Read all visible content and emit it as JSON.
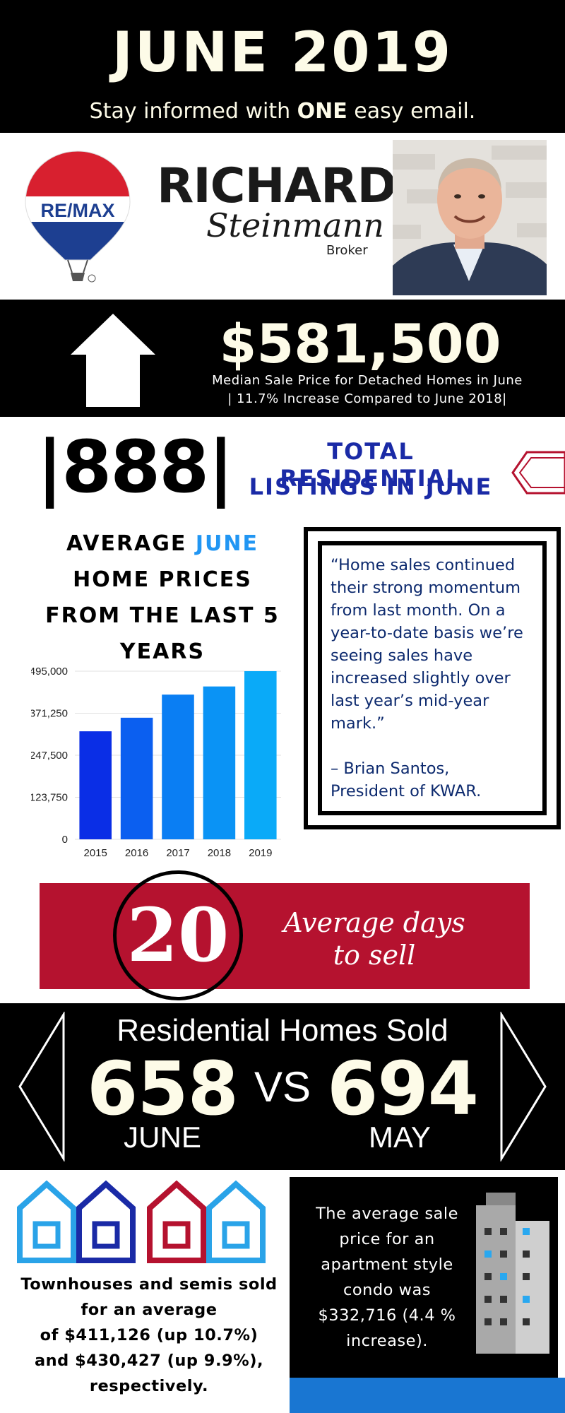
{
  "header": {
    "title": "JUNE 2019",
    "subtitle_pre": "Stay informed with ",
    "subtitle_bold": "ONE",
    "subtitle_post": " easy email."
  },
  "agent": {
    "logo_text": "RE/MAX",
    "first_name": "RICHARD",
    "last_name": "Steinmann",
    "role": "Broker",
    "colors": {
      "red": "#d8202f",
      "blue": "#1d3f91"
    }
  },
  "median": {
    "icon": "house-icon",
    "price": "$581,500",
    "line1": "Median Sale Price for Detached Homes in June",
    "line2": "| 11.7% Increase Compared to June 2018|"
  },
  "listings": {
    "number": "|888|",
    "label_line1": "TOTAL RESIDENTIAL",
    "label_line2": "LISTINGS IN JUNE"
  },
  "avg_prices": {
    "title_l1_pre": "AVERAGE ",
    "title_l1_hl": "JUNE",
    "title_l2": "HOME PRICES",
    "title_l3": "FROM THE LAST 5",
    "title_l4": "YEARS"
  },
  "chart_data": {
    "type": "bar",
    "categories": [
      "2015",
      "2016",
      "2017",
      "2018",
      "2019"
    ],
    "values": [
      318000,
      358000,
      426000,
      450000,
      495000
    ],
    "ylim": [
      0,
      495000
    ],
    "yticks": [
      "495,000",
      "371,250",
      "247,500",
      "123,750",
      "0"
    ],
    "ytick_values": [
      495000,
      371250,
      247500,
      123750,
      0
    ],
    "colors": [
      "#0a2ee6",
      "#0b5ff0",
      "#0a7ef3",
      "#0a93f5",
      "#0aaaf8"
    ],
    "grid": true
  },
  "quote": {
    "text": "“Home sales continued their strong momentum from last month. On a year-to-date basis we’re seeing sales have increased slightly over last year’s mid-year mark.”",
    "attr_l1": "– Brian Santos,",
    "attr_l2": "President of KWAR."
  },
  "days": {
    "number": "20",
    "label_l1": "Average days",
    "label_l2": "to sell"
  },
  "sold": {
    "title": "Residential Homes Sold",
    "june_value": "658",
    "june_label": "JUNE",
    "vs": "VS",
    "may_value": "694",
    "may_label": "MAY"
  },
  "townhouses": {
    "l1": "Townhouses and semis sold",
    "l2": "for an average",
    "l3": "of $411,126 (up 10.7%)",
    "l4": "and $430,427 (up 9.9%),",
    "l5": "respectively."
  },
  "condo": {
    "l1": "The average sale",
    "l2": "price for an",
    "l3": "apartment style",
    "l4": "condo was",
    "l5": "$332,716 (4.4 %",
    "l6": "increase)."
  }
}
